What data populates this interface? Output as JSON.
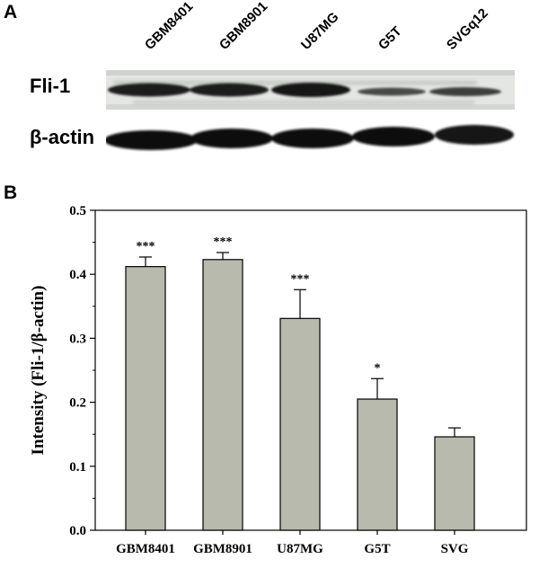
{
  "panel_a": {
    "letter": "A",
    "lanes": [
      "GBM8401",
      "GBM8901",
      "U87MG",
      "G5T",
      "SVGq12"
    ],
    "rows": [
      "Fli-1",
      "β-actin"
    ]
  },
  "panel_b": {
    "letter": "B"
  },
  "colors": {
    "bar_fill": "#b9baae",
    "bar_stroke": "#000000",
    "band": "#141414"
  },
  "chart_data": {
    "type": "bar",
    "categories": [
      "GBM8401",
      "GBM8901",
      "U87MG",
      "G5T",
      "SVG"
    ],
    "values": [
      0.412,
      0.423,
      0.331,
      0.205,
      0.146
    ],
    "errors": [
      0.015,
      0.011,
      0.045,
      0.032,
      0.014
    ],
    "significance": [
      "***",
      "***",
      "***",
      "*",
      ""
    ],
    "ylabel": "Intensity (Fli-1/β-actin)",
    "xlabel": "",
    "ylim": [
      0,
      0.5
    ],
    "yticks": [
      "0.0",
      "0.1",
      "0.2",
      "0.3",
      "0.4",
      "0.5"
    ],
    "grid": false
  }
}
